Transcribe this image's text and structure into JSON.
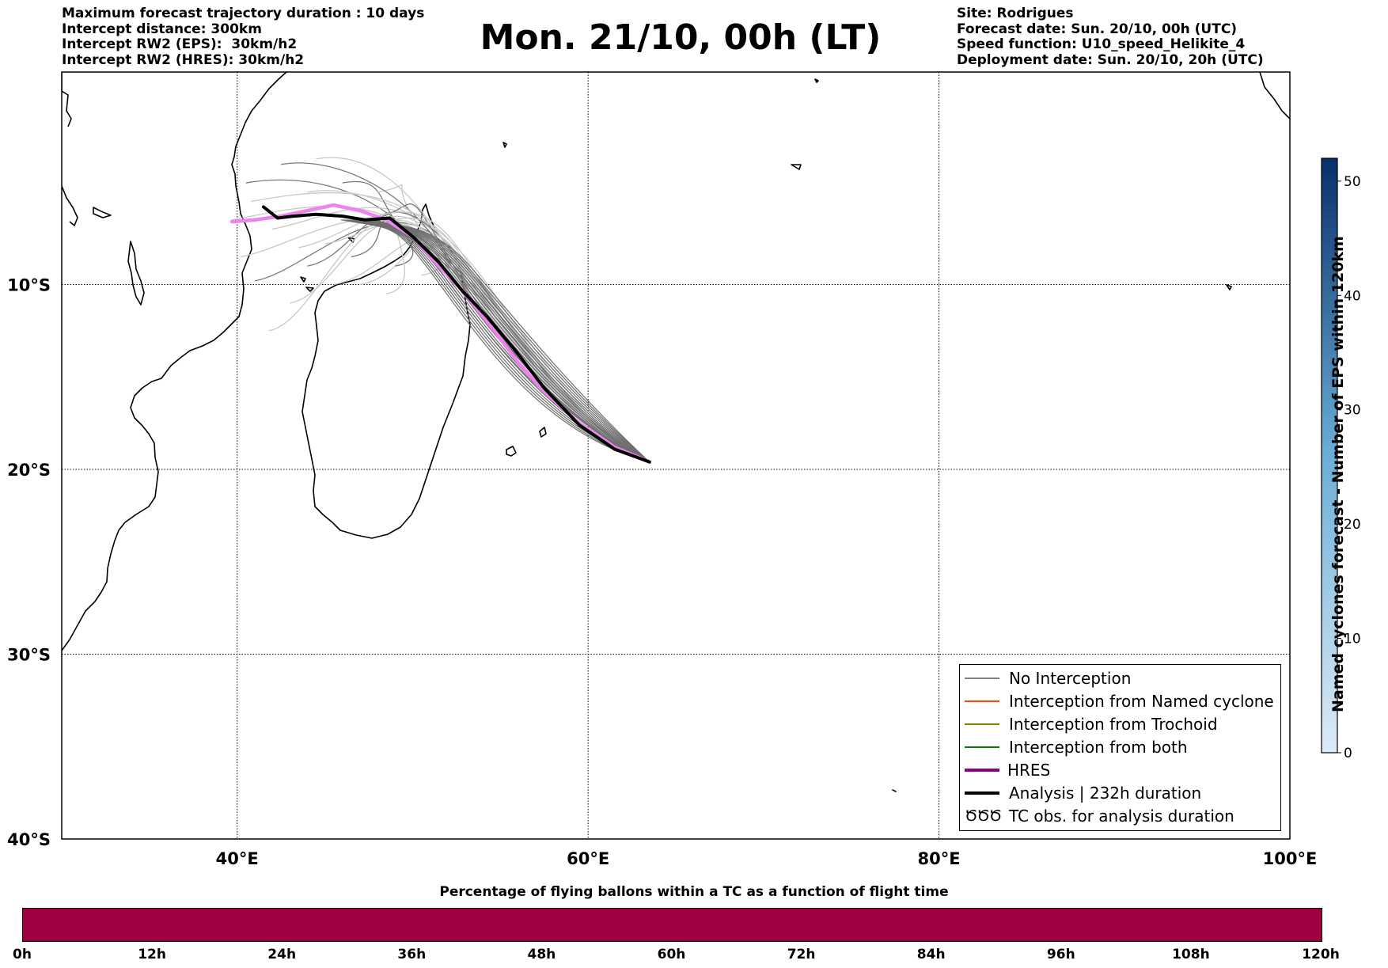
{
  "header": {
    "left_lines": [
      "Maximum forecast trajectory duration : 10 days",
      "Intercept distance: 300km",
      "Intercept RW2 (EPS):  30km/h2",
      "Intercept RW2 (HRES): 30km/h2"
    ],
    "title": "Mon. 21/10, 00h (LT)",
    "right_lines": [
      "Site: Rodrigues",
      "Forecast date: Sun. 20/10, 00h (UTC)",
      "Speed function: U10_speed_Helikite_4",
      "Deployment date: Sun. 20/10, 20h (UTC)"
    ]
  },
  "map": {
    "lon_range": [
      30,
      100
    ],
    "lat_range": [
      -40,
      1.5
    ],
    "lon_ticks": [
      {
        "value": 40,
        "label": "40°E"
      },
      {
        "value": 60,
        "label": "60°E"
      },
      {
        "value": 80,
        "label": "80°E"
      },
      {
        "value": 100,
        "label": "100°E"
      }
    ],
    "lat_ticks": [
      {
        "value": -10,
        "label": "10°S"
      },
      {
        "value": -20,
        "label": "20°S"
      },
      {
        "value": -30,
        "label": "30°S"
      },
      {
        "value": -40,
        "label": "40°S"
      }
    ],
    "grid": true
  },
  "legend": {
    "items": [
      {
        "label": "No Interception",
        "color": "#808080",
        "style": "thin"
      },
      {
        "label": "Interception from Named cyclone",
        "color": "#ff4500",
        "style": "thin"
      },
      {
        "label": "Interception from Trochoid",
        "color": "#808000",
        "style": "thin"
      },
      {
        "label": "Interception from both",
        "color": "#008000",
        "style": "thin"
      },
      {
        "label": "HRES",
        "color": "#8b008b",
        "style": "thick"
      },
      {
        "label": "Analysis | 232h duration",
        "color": "#000000",
        "style": "thick"
      },
      {
        "label": "TC obs. for analysis duration",
        "color": "#000000",
        "style": "symbol",
        "symbol": "ԾԾԾ"
      }
    ]
  },
  "colorbar": {
    "title": "Named cyclones forecast - Number of EPS within 120km",
    "range": [
      0,
      52
    ],
    "ticks": [
      "0",
      "10",
      "20",
      "30",
      "40",
      "50"
    ],
    "colors": [
      "#deebf7",
      "#08306b"
    ]
  },
  "bottom_bar": {
    "title": "Percentage of flying ballons within a TC as a function of flight time",
    "color": "#9e0041",
    "ticks": [
      "0h",
      "12h",
      "24h",
      "36h",
      "48h",
      "60h",
      "72h",
      "84h",
      "96h",
      "108h",
      "120h"
    ]
  },
  "chart_data": {
    "type": "line",
    "xlabel": "",
    "ylabel": "",
    "series": [
      {
        "name": "HRES",
        "color": "#ee82ee",
        "points": [
          [
            63.5,
            -19.6
          ],
          [
            61.5,
            -18.8
          ],
          [
            59.5,
            -17.5
          ],
          [
            57.5,
            -15.8
          ],
          [
            56,
            -14.2
          ],
          [
            54.5,
            -12.3
          ],
          [
            53,
            -10.5
          ],
          [
            51.5,
            -9
          ],
          [
            50,
            -7.4
          ],
          [
            48.5,
            -6.5
          ],
          [
            47,
            -6.0
          ],
          [
            45.5,
            -5.7
          ],
          [
            44,
            -6.0
          ],
          [
            42.5,
            -6.3
          ],
          [
            41,
            -6.5
          ],
          [
            39.7,
            -6.6
          ]
        ]
      },
      {
        "name": "Analysis | 232h duration",
        "color": "#000000",
        "points": [
          [
            63.5,
            -19.6
          ],
          [
            61.5,
            -18.9
          ],
          [
            59.5,
            -17.6
          ],
          [
            57.5,
            -15.6
          ],
          [
            55.8,
            -13.5
          ],
          [
            54.2,
            -11.7
          ],
          [
            52.8,
            -10.3
          ],
          [
            51.5,
            -8.8
          ],
          [
            50,
            -7.4
          ],
          [
            48.7,
            -6.4
          ],
          [
            47.3,
            -6.5
          ],
          [
            46,
            -6.3
          ],
          [
            44.5,
            -6.2
          ],
          [
            43.2,
            -6.3
          ],
          [
            42.3,
            -6.4
          ],
          [
            41.5,
            -5.8
          ]
        ]
      }
    ]
  }
}
